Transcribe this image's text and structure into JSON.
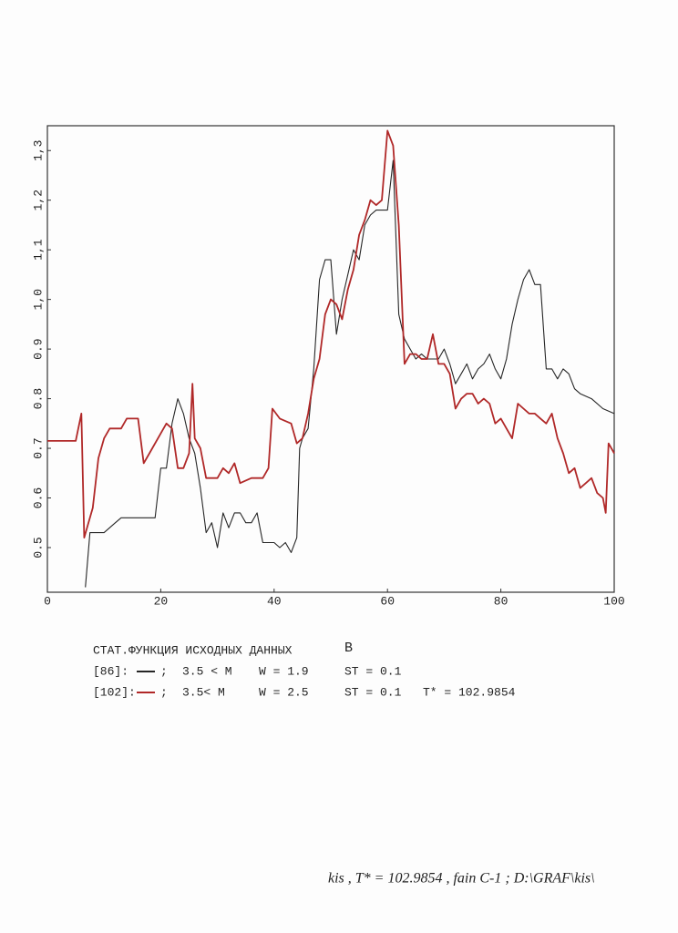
{
  "chart_data": {
    "type": "line",
    "title": "СТАТ.ФУНКЦИЯ ИСХОДНЫХ ДАННЫХ",
    "subtitle": "B",
    "xlim": [
      0,
      100
    ],
    "xticks": [
      0,
      20,
      40,
      60,
      80,
      100
    ],
    "ylim": [
      0.41,
      1.35
    ],
    "yticks": [
      0.5,
      0.6,
      0.7,
      0.8,
      0.9,
      {
        "value": 1.0,
        "label": "1,0"
      },
      {
        "value": 1.1,
        "label": "1,1"
      },
      {
        "value": 1.2,
        "label": "1,2"
      },
      {
        "value": 1.3,
        "label": "1,3"
      }
    ],
    "series": [
      {
        "name": "[86]:",
        "color": "#262626",
        "notes": [
          ";",
          "3.5 < M",
          "W = 1.9",
          "ST = 0.1"
        ],
        "x": [
          6.7,
          7.5,
          10,
          12,
          13,
          19,
          20,
          21,
          22,
          23,
          24,
          25,
          26,
          27,
          28,
          29,
          30,
          31,
          32,
          33,
          34,
          35,
          36,
          37,
          38,
          40,
          41,
          42,
          43,
          44,
          44.5,
          45,
          46,
          47,
          48,
          49,
          50,
          51,
          52,
          53,
          54,
          55,
          56,
          57,
          58,
          59,
          60,
          61,
          62,
          63,
          64,
          65,
          66,
          67,
          68,
          69,
          70,
          71,
          72,
          73,
          74,
          75,
          76,
          77,
          78,
          79,
          80,
          81,
          82,
          83,
          84,
          85,
          86,
          87,
          88,
          89,
          90,
          91,
          92,
          93,
          94,
          96,
          98,
          100
        ],
        "values": [
          0.42,
          0.53,
          0.53,
          0.55,
          0.56,
          0.56,
          0.66,
          0.66,
          0.75,
          0.8,
          0.77,
          0.72,
          0.69,
          0.62,
          0.53,
          0.55,
          0.5,
          0.57,
          0.54,
          0.57,
          0.57,
          0.55,
          0.55,
          0.57,
          0.51,
          0.51,
          0.5,
          0.51,
          0.49,
          0.52,
          0.7,
          0.72,
          0.74,
          0.86,
          1.04,
          1.08,
          1.08,
          0.93,
          1.0,
          1.05,
          1.1,
          1.08,
          1.15,
          1.17,
          1.18,
          1.18,
          1.18,
          1.28,
          0.97,
          0.92,
          0.9,
          0.88,
          0.89,
          0.88,
          0.88,
          0.88,
          0.9,
          0.87,
          0.83,
          0.85,
          0.87,
          0.84,
          0.86,
          0.87,
          0.89,
          0.86,
          0.84,
          0.88,
          0.95,
          1.0,
          1.04,
          1.06,
          1.03,
          1.03,
          0.86,
          0.86,
          0.84,
          0.86,
          0.85,
          0.82,
          0.81,
          0.8,
          0.78,
          0.77
        ]
      },
      {
        "name": "[102]:",
        "color": "#b02828",
        "notes": [
          ";",
          "3.5< M",
          "W = 2.5",
          "ST = 0.1"
        ],
        "x": [
          0,
          5,
          6,
          6.5,
          8,
          9,
          10,
          11,
          13,
          14,
          16,
          17,
          18,
          20,
          21,
          22,
          23,
          24,
          25,
          25.6,
          26,
          27,
          28,
          30,
          31,
          32,
          33,
          34,
          36,
          37,
          38,
          39,
          39.7,
          41,
          43,
          44,
          45,
          46,
          47,
          48,
          49,
          50,
          51,
          52,
          53,
          54,
          55,
          56,
          57,
          58,
          59,
          60,
          61,
          62,
          63,
          64,
          65,
          66,
          67,
          68,
          69,
          70,
          71,
          72,
          73,
          74,
          75,
          76,
          77,
          78,
          79,
          80,
          81,
          82,
          83,
          84,
          85,
          86,
          87,
          88,
          89,
          90,
          91,
          92,
          93,
          94,
          95,
          96,
          97,
          98,
          98.5,
          99,
          100
        ],
        "values": [
          0.715,
          0.715,
          0.77,
          0.52,
          0.58,
          0.68,
          0.72,
          0.74,
          0.74,
          0.76,
          0.76,
          0.67,
          0.69,
          0.73,
          0.75,
          0.74,
          0.66,
          0.66,
          0.69,
          0.83,
          0.72,
          0.7,
          0.64,
          0.64,
          0.66,
          0.65,
          0.67,
          0.63,
          0.64,
          0.64,
          0.64,
          0.66,
          0.78,
          0.76,
          0.75,
          0.71,
          0.72,
          0.77,
          0.84,
          0.88,
          0.97,
          1.0,
          0.99,
          0.96,
          1.02,
          1.06,
          1.13,
          1.16,
          1.2,
          1.19,
          1.2,
          1.34,
          1.31,
          1.15,
          0.87,
          0.89,
          0.89,
          0.88,
          0.88,
          0.93,
          0.87,
          0.87,
          0.85,
          0.78,
          0.8,
          0.81,
          0.81,
          0.79,
          0.8,
          0.79,
          0.75,
          0.76,
          0.74,
          0.72,
          0.79,
          0.78,
          0.77,
          0.77,
          0.76,
          0.75,
          0.77,
          0.72,
          0.69,
          0.65,
          0.66,
          0.62,
          0.63,
          0.64,
          0.61,
          0.6,
          0.57,
          0.71,
          0.69
        ]
      }
    ],
    "result": "T* = 102.9854",
    "footer": "kis ,  T* = 102.9854 , fain C-1 ; D:\\GRAF\\kis\\"
  }
}
